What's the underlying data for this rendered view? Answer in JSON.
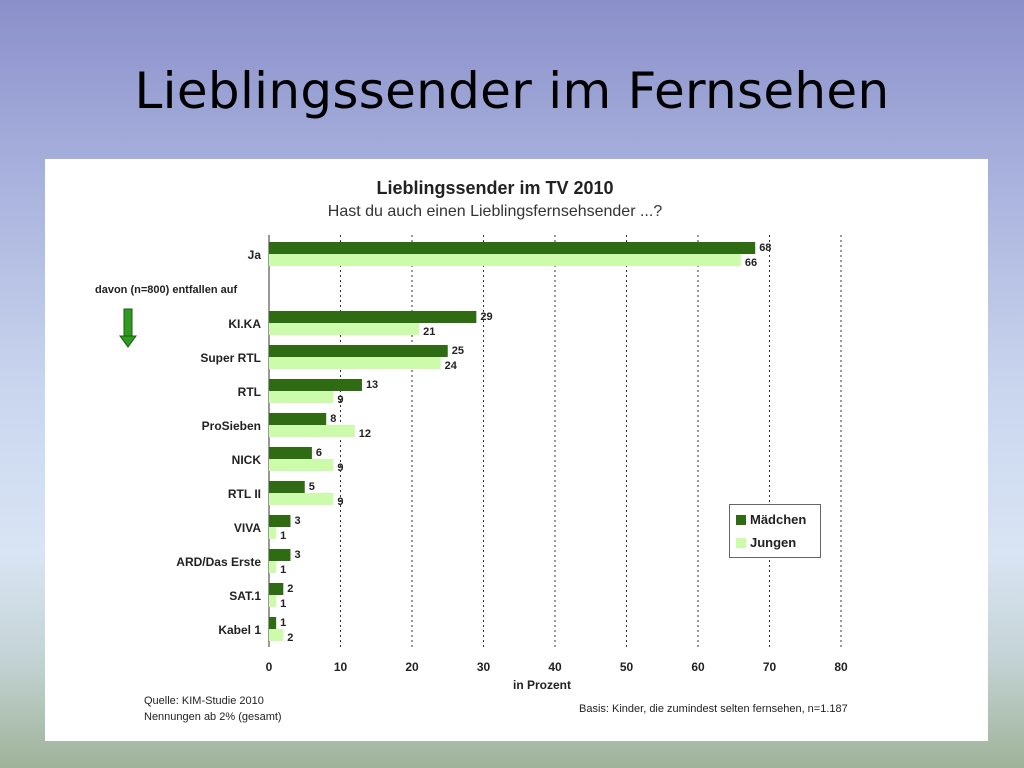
{
  "slide": {
    "title": "Lieblingssender im Fernsehen"
  },
  "colors": {
    "maedchen": "#2e6b12",
    "jungen": "#ccfcab"
  },
  "chart_data": {
    "type": "bar",
    "orientation": "horizontal",
    "title": "Lieblingssender im TV 2010",
    "subtitle": "Hast du auch einen Lieblingsfernsehsender ...?",
    "xlabel": "in Prozent",
    "xlim": [
      0,
      80
    ],
    "xticks": [
      0,
      10,
      20,
      30,
      40,
      50,
      60,
      70,
      80
    ],
    "grid": "vertical dotted",
    "legend_position": "lower-right",
    "group_note": "davon  (n=800) entfallen auf",
    "categories": [
      "Ja",
      "KI.KA",
      "Super RTL",
      "RTL",
      "ProSieben",
      "NICK",
      "RTL II",
      "VIVA",
      "ARD/Das Erste",
      "SAT.1",
      "Kabel 1"
    ],
    "series": [
      {
        "name": "Mädchen",
        "values": [
          68,
          29,
          25,
          13,
          8,
          6,
          5,
          3,
          3,
          2,
          1
        ]
      },
      {
        "name": "Jungen",
        "values": [
          66,
          21,
          24,
          9,
          12,
          9,
          9,
          1,
          1,
          1,
          2
        ]
      }
    ],
    "source": "Quelle: KIM-Studie 2010",
    "source_note": "Nennungen ab 2% (gesamt)",
    "basis": "Basis: Kinder, die zumindest selten fernsehen, n=1.187"
  }
}
